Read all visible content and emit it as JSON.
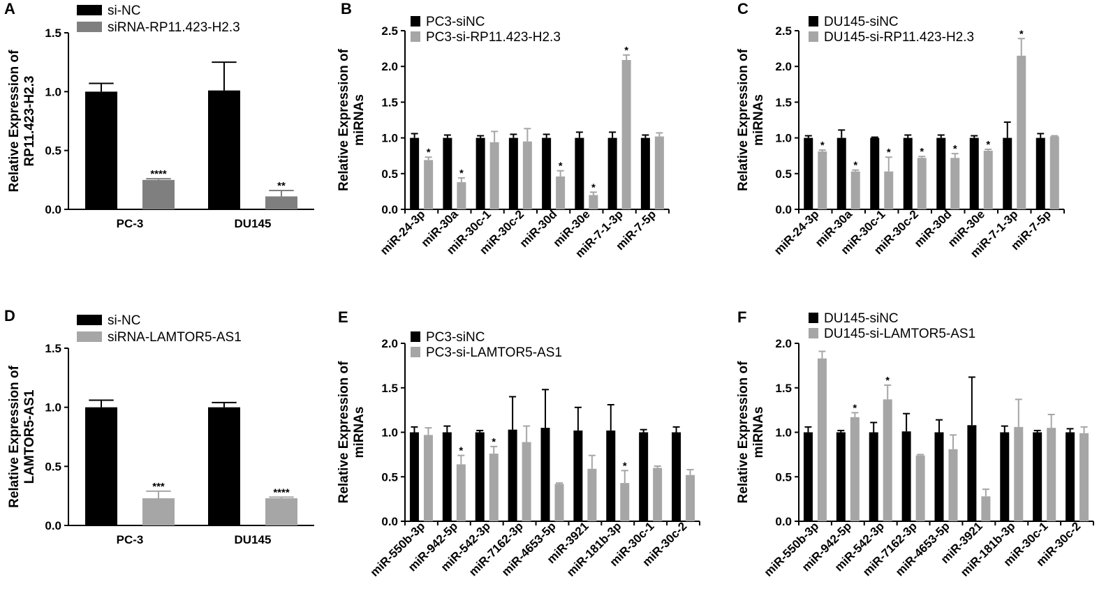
{
  "colors": {
    "black": "#000000",
    "dark_gray": "#7f7f7f",
    "light_gray": "#a6a6a6"
  },
  "chart_data": [
    {
      "id": "A",
      "letter": "A",
      "type": "bar",
      "ylabel": [
        "Relative Expression of",
        "RP11.423-H2.3"
      ],
      "ylim": [
        0,
        1.5
      ],
      "yticks": [
        "0.0",
        "0.5",
        "1.0",
        "1.5"
      ],
      "ytick_values": [
        0,
        0.5,
        1.0,
        1.5
      ],
      "categories": [
        "PC-3",
        "DU145"
      ],
      "rotate_x": false,
      "series": [
        {
          "name": "si-NC",
          "color": "#000000",
          "values": [
            1.0,
            1.01
          ],
          "errors": [
            0.07,
            0.24
          ]
        },
        {
          "name": "siRNA-RP11.423-H2.3",
          "color": "#7f7f7f",
          "values": [
            0.25,
            0.11
          ],
          "errors": [
            0.01,
            0.05
          ]
        }
      ],
      "significance": [
        [
          "",
          ""
        ],
        [
          "****",
          "**"
        ]
      ]
    },
    {
      "id": "B",
      "letter": "B",
      "type": "bar",
      "ylabel": [
        "Relative Expression of",
        "miRNAs"
      ],
      "ylim": [
        0,
        2.5
      ],
      "yticks": [
        "0.0",
        "0.5",
        "1.0",
        "1.5",
        "2.0",
        "2.5"
      ],
      "ytick_values": [
        0,
        0.5,
        1.0,
        1.5,
        2.0,
        2.5
      ],
      "categories": [
        "miR-24-3p",
        "miR-30a",
        "miR-30c-1",
        "miR-30c-2",
        "miR-30d",
        "miR-30e",
        "miR-7-1-3p",
        "miR-7-5p"
      ],
      "rotate_x": true,
      "series": [
        {
          "name": "PC3-siNC",
          "color": "#000000",
          "values": [
            1.0,
            1.0,
            1.0,
            1.0,
            1.0,
            1.0,
            1.0,
            1.0
          ],
          "errors": [
            0.06,
            0.04,
            0.03,
            0.05,
            0.05,
            0.08,
            0.08,
            0.04
          ]
        },
        {
          "name": "PC3-si-RP11.423-H2.3",
          "color": "#a6a6a6",
          "values": [
            0.69,
            0.38,
            0.94,
            0.95,
            0.46,
            0.2,
            2.09,
            1.02
          ],
          "errors": [
            0.04,
            0.06,
            0.15,
            0.18,
            0.08,
            0.04,
            0.07,
            0.05
          ]
        }
      ],
      "significance": [
        [
          "",
          "",
          "",
          "",
          "",
          "",
          "",
          ""
        ],
        [
          "*",
          "*",
          "",
          "",
          "*",
          "*",
          "*",
          ""
        ]
      ]
    },
    {
      "id": "C",
      "letter": "C",
      "type": "bar",
      "ylabel": [
        "Relative Expression of",
        "miRNAs"
      ],
      "ylim": [
        0,
        2.5
      ],
      "yticks": [
        "0.0",
        "0.5",
        "1.0",
        "1.5",
        "2.0",
        "2.5"
      ],
      "ytick_values": [
        0,
        0.5,
        1.0,
        1.5,
        2.0,
        2.5
      ],
      "categories": [
        "miR-24-3p",
        "miR-30a",
        "miR-30c-1",
        "miR-30c-2",
        "miR-30d",
        "miR-30e",
        "miR-7-1-3p",
        "miR-7-5p"
      ],
      "rotate_x": true,
      "series": [
        {
          "name": "DU145-siNC",
          "color": "#000000",
          "values": [
            1.0,
            1.0,
            1.0,
            1.0,
            1.0,
            1.0,
            1.0,
            1.0
          ],
          "errors": [
            0.03,
            0.11,
            0.01,
            0.04,
            0.04,
            0.03,
            0.22,
            0.06
          ]
        },
        {
          "name": "DU145-si-RP11.423-H2.3",
          "color": "#a6a6a6",
          "values": [
            0.81,
            0.53,
            0.53,
            0.72,
            0.72,
            0.82,
            2.15,
            1.02
          ],
          "errors": [
            0.02,
            0.02,
            0.2,
            0.02,
            0.06,
            0.02,
            0.24,
            0.01
          ]
        }
      ],
      "significance": [
        [
          "",
          "",
          "",
          "",
          "",
          "",
          "",
          ""
        ],
        [
          "*",
          "*",
          "*",
          "*",
          "*",
          "*",
          "*",
          ""
        ]
      ]
    },
    {
      "id": "D",
      "letter": "D",
      "type": "bar",
      "ylabel": [
        "Relative Expression of",
        "LAMTOR5-AS1"
      ],
      "ylim": [
        0,
        1.5
      ],
      "yticks": [
        "0.0",
        "0.5",
        "1.0",
        "1.5"
      ],
      "ytick_values": [
        0,
        0.5,
        1.0,
        1.5
      ],
      "categories": [
        "PC-3",
        "DU145"
      ],
      "rotate_x": false,
      "series": [
        {
          "name": "si-NC",
          "color": "#000000",
          "values": [
            1.0,
            1.0
          ],
          "errors": [
            0.06,
            0.04
          ]
        },
        {
          "name": "siRNA-LAMTOR5-AS1",
          "color": "#a6a6a6",
          "values": [
            0.23,
            0.23
          ],
          "errors": [
            0.06,
            0.01
          ]
        }
      ],
      "significance": [
        [
          "",
          ""
        ],
        [
          "***",
          "****"
        ]
      ]
    },
    {
      "id": "E",
      "letter": "E",
      "type": "bar",
      "ylabel": [
        "Relative Expression of",
        "miRNAs"
      ],
      "ylim": [
        0,
        2.0
      ],
      "yticks": [
        "0.0",
        "0.5",
        "1.0",
        "1.5",
        "2.0"
      ],
      "ytick_values": [
        0,
        0.5,
        1.0,
        1.5,
        2.0
      ],
      "categories": [
        "miR-550b-3p",
        "miR-942-5p",
        "miR-542-3p",
        "miR-7162-3p",
        "miR-4653-5p",
        "miR-3921",
        "miR-181b-3p",
        "miR-30c-1",
        "miR-30c-2"
      ],
      "rotate_x": true,
      "series": [
        {
          "name": "PC3-siNC",
          "color": "#000000",
          "values": [
            1.0,
            1.0,
            1.0,
            1.03,
            1.05,
            1.02,
            1.02,
            1.0,
            1.0
          ],
          "errors": [
            0.06,
            0.07,
            0.02,
            0.37,
            0.43,
            0.26,
            0.29,
            0.03,
            0.06
          ]
        },
        {
          "name": "PC3-si-LAMTOR5-AS1",
          "color": "#a6a6a6",
          "values": [
            0.97,
            0.64,
            0.76,
            0.89,
            0.42,
            0.59,
            0.43,
            0.6,
            0.52
          ],
          "errors": [
            0.08,
            0.1,
            0.08,
            0.18,
            0.01,
            0.15,
            0.14,
            0.02,
            0.06
          ]
        }
      ],
      "significance": [
        [
          "",
          "",
          "",
          "",
          "",
          "",
          "",
          "",
          ""
        ],
        [
          "",
          "*",
          "*",
          "",
          "",
          "",
          "*",
          "",
          ""
        ]
      ]
    },
    {
      "id": "F",
      "letter": "F",
      "type": "bar",
      "ylabel": [
        "Relative Expression of",
        "miRNAs"
      ],
      "ylim": [
        0,
        2.0
      ],
      "yticks": [
        "0.0",
        "0.5",
        "1.0",
        "1.5",
        "2.0"
      ],
      "ytick_values": [
        0,
        0.5,
        1.0,
        1.5,
        2.0
      ],
      "categories": [
        "miR-550b-3p",
        "miR-942-5p",
        "miR-542-3p",
        "miR-7162-3p",
        "miR-4653-5p",
        "miR-3921",
        "miR-181b-3p",
        "miR-30c-1",
        "miR-30c-2"
      ],
      "rotate_x": true,
      "series": [
        {
          "name": "DU145-siNC",
          "color": "#000000",
          "values": [
            1.0,
            1.0,
            1.0,
            1.01,
            1.0,
            1.08,
            1.0,
            1.0,
            1.0
          ],
          "errors": [
            0.06,
            0.02,
            0.11,
            0.2,
            0.14,
            0.54,
            0.07,
            0.02,
            0.04
          ]
        },
        {
          "name": "DU145-si-LAMTOR5-AS1",
          "color": "#a6a6a6",
          "values": [
            1.83,
            1.17,
            1.37,
            0.74,
            0.81,
            0.28,
            1.06,
            1.05,
            0.99
          ],
          "errors": [
            0.08,
            0.05,
            0.16,
            0.01,
            0.16,
            0.08,
            0.31,
            0.15,
            0.07
          ]
        }
      ],
      "significance": [
        [
          "",
          "",
          "",
          "",
          "",
          "",
          "",
          "",
          ""
        ],
        [
          "",
          "*",
          "*",
          "",
          "",
          "",
          "",
          "",
          ""
        ]
      ]
    }
  ]
}
